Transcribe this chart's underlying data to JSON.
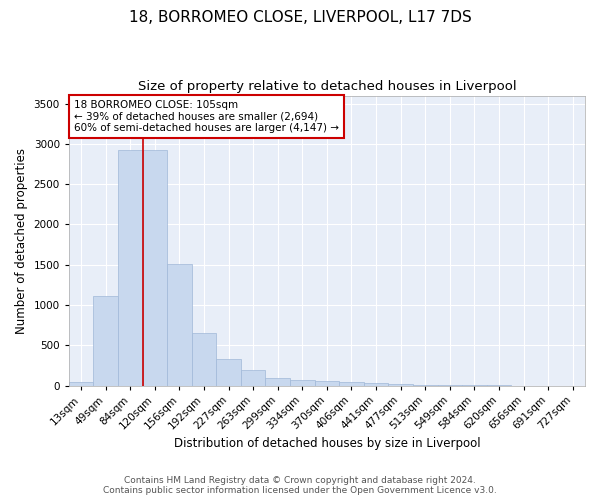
{
  "title": "18, BORROMEO CLOSE, LIVERPOOL, L17 7DS",
  "subtitle": "Size of property relative to detached houses in Liverpool",
  "xlabel": "Distribution of detached houses by size in Liverpool",
  "ylabel": "Number of detached properties",
  "bar_color": "#c8d8ee",
  "bar_edge_color": "#a0b8d8",
  "background_color": "#e8eef8",
  "grid_color": "#ffffff",
  "annotation_box_color": "#cc0000",
  "property_line_color": "#cc0000",
  "categories": [
    "13sqm",
    "49sqm",
    "84sqm",
    "120sqm",
    "156sqm",
    "192sqm",
    "227sqm",
    "263sqm",
    "299sqm",
    "334sqm",
    "370sqm",
    "406sqm",
    "441sqm",
    "477sqm",
    "513sqm",
    "549sqm",
    "584sqm",
    "620sqm",
    "656sqm",
    "691sqm",
    "727sqm"
  ],
  "values": [
    50,
    1110,
    2920,
    2920,
    1510,
    650,
    330,
    190,
    95,
    70,
    55,
    50,
    30,
    20,
    5,
    3,
    2,
    1,
    0,
    0,
    0
  ],
  "ylim": [
    0,
    3600
  ],
  "yticks": [
    0,
    500,
    1000,
    1500,
    2000,
    2500,
    3000,
    3500
  ],
  "property_line_x": 2.5,
  "annotation_text": "18 BORROMEO CLOSE: 105sqm\n← 39% of detached houses are smaller (2,694)\n60% of semi-detached houses are larger (4,147) →",
  "footer_line1": "Contains HM Land Registry data © Crown copyright and database right 2024.",
  "footer_line2": "Contains public sector information licensed under the Open Government Licence v3.0.",
  "title_fontsize": 11,
  "subtitle_fontsize": 9.5,
  "axis_label_fontsize": 8.5,
  "tick_fontsize": 7.5,
  "annotation_fontsize": 7.5,
  "footer_fontsize": 6.5
}
